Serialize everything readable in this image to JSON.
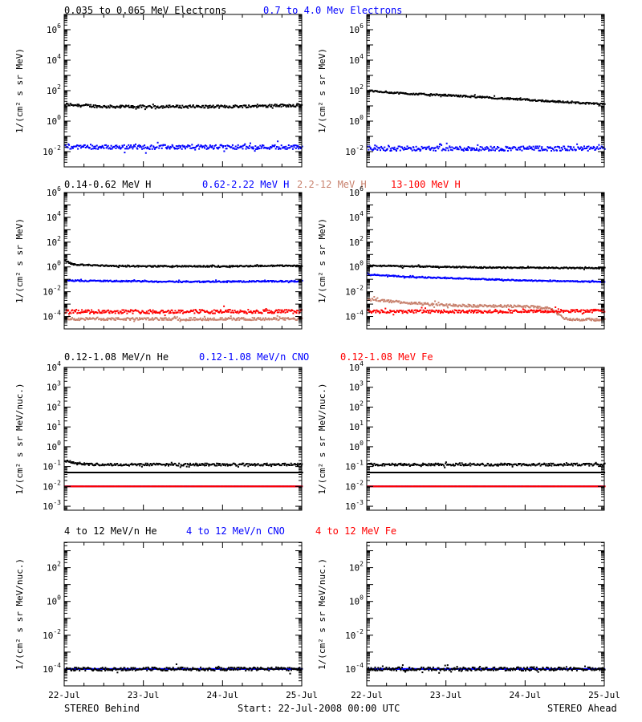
{
  "colors": {
    "black": "#000000",
    "blue": "#0000ff",
    "tan": "#c8826e",
    "red": "#ff0000"
  },
  "rows": [
    {
      "titles": [
        {
          "text": "0.035 to 0.065 MeV Electrons",
          "color": "black"
        },
        {
          "text": "0.7 to 4.0 Mev Electrons",
          "color": "blue"
        }
      ],
      "ylabel": "1/(cm² s sr MeV)"
    },
    {
      "titles": [
        {
          "text": "0.14-0.62 MeV H",
          "color": "black"
        },
        {
          "text": "0.62-2.22 MeV H",
          "color": "blue"
        },
        {
          "text": "2.2-12 MeV H",
          "color": "tan"
        },
        {
          "text": "13-100 MeV H",
          "color": "red"
        }
      ],
      "ylabel": "1/(cm² s sr MeV)"
    },
    {
      "titles": [
        {
          "text": "0.12-1.08 MeV/n He",
          "color": "black"
        },
        {
          "text": "0.12-1.08 MeV/n CNO",
          "color": "blue"
        },
        {
          "text": "0.12-1.08 MeV Fe",
          "color": "red"
        }
      ],
      "ylabel": "1/(cm² s sr MeV/nuc.)"
    },
    {
      "titles": [
        {
          "text": "4 to 12 MeV/n He",
          "color": "black"
        },
        {
          "text": "4 to 12 MeV/n CNO",
          "color": "blue"
        },
        {
          "text": "4 to 12 MeV Fe",
          "color": "red"
        }
      ],
      "ylabel": "1/(cm² s sr MeV/nuc.)"
    }
  ],
  "footer": {
    "left": "STEREO Behind",
    "center": "Start: 22-Jul-2008 00:00 UTC",
    "right": "STEREO Ahead"
  },
  "chart_data": [
    {
      "type": "scatter",
      "panel": "behind-electrons",
      "row": 0,
      "col": 0,
      "x_ticks": [
        "22-Jul",
        "23-Jul",
        "24-Jul",
        "25-Jul"
      ],
      "xlim": [
        0,
        3
      ],
      "yscale": "log",
      "ylim_exp": [
        -3,
        7
      ],
      "y_ticks": [
        {
          "base": "10",
          "exp": "-2",
          "e": -2
        },
        {
          "base": "10",
          "exp": "0",
          "e": 0
        },
        {
          "base": "10",
          "exp": "2",
          "e": 2
        },
        {
          "base": "10",
          "exp": "4",
          "e": 4
        },
        {
          "base": "10",
          "exp": "6",
          "e": 6
        }
      ],
      "series": [
        {
          "color": "black",
          "x": [
            0,
            0.5,
            1.0,
            1.5,
            2.0,
            2.5,
            3.0
          ],
          "log10_y": [
            1.1,
            0.95,
            0.95,
            0.95,
            0.95,
            1.0,
            1.05
          ],
          "scatter": 0.09
        },
        {
          "color": "blue",
          "x": [
            0,
            1.5,
            3.0
          ],
          "log10_y": [
            -1.7,
            -1.7,
            -1.7
          ],
          "scatter": 0.14
        }
      ]
    },
    {
      "type": "scatter",
      "panel": "ahead-electrons",
      "row": 0,
      "col": 1,
      "x_ticks": [
        "22-Jul",
        "23-Jul",
        "24-Jul",
        "25-Jul"
      ],
      "xlim": [
        0,
        3
      ],
      "yscale": "log",
      "ylim_exp": [
        -3,
        7
      ],
      "y_ticks": [
        {
          "base": "10",
          "exp": "-2",
          "e": -2
        },
        {
          "base": "10",
          "exp": "0",
          "e": 0
        },
        {
          "base": "10",
          "exp": "2",
          "e": 2
        },
        {
          "base": "10",
          "exp": "4",
          "e": 4
        },
        {
          "base": "10",
          "exp": "6",
          "e": 6
        }
      ],
      "series": [
        {
          "color": "black",
          "x": [
            0,
            0.5,
            1.0,
            1.5,
            2.0,
            2.5,
            3.0
          ],
          "log10_y": [
            2.0,
            1.8,
            1.7,
            1.55,
            1.4,
            1.25,
            1.1
          ],
          "scatter": 0.05
        },
        {
          "color": "blue",
          "x": [
            0,
            1.5,
            3.0
          ],
          "log10_y": [
            -1.8,
            -1.8,
            -1.8
          ],
          "scatter": 0.15
        }
      ]
    },
    {
      "type": "scatter",
      "panel": "behind-protons",
      "row": 1,
      "col": 0,
      "x_ticks": [
        "22-Jul",
        "23-Jul",
        "24-Jul",
        "25-Jul"
      ],
      "xlim": [
        0,
        3
      ],
      "yscale": "log",
      "ylim_exp": [
        -5,
        6
      ],
      "y_ticks": [
        {
          "base": "10",
          "exp": "-4",
          "e": -4
        },
        {
          "base": "10",
          "exp": "-2",
          "e": -2
        },
        {
          "base": "10",
          "exp": "0",
          "e": 0
        },
        {
          "base": "10",
          "exp": "2",
          "e": 2
        },
        {
          "base": "10",
          "exp": "4",
          "e": 4
        },
        {
          "base": "10",
          "exp": "6",
          "e": 6
        }
      ],
      "series": [
        {
          "color": "black",
          "x": [
            0,
            0.1,
            0.5,
            1.0,
            2.0,
            2.8,
            3.0
          ],
          "log10_y": [
            0.5,
            0.2,
            0.1,
            0.05,
            0.05,
            0.1,
            0.1
          ],
          "scatter": 0.05
        },
        {
          "color": "blue",
          "x": [
            0,
            1.5,
            3.0
          ],
          "log10_y": [
            -1.1,
            -1.2,
            -1.15
          ],
          "scatter": 0.05
        },
        {
          "color": "tan",
          "x": [
            0,
            1.5,
            3.0
          ],
          "log10_y": [
            -4.2,
            -4.2,
            -4.2
          ],
          "scatter": 0.1
        },
        {
          "color": "red",
          "x": [
            0,
            1.5,
            3.0
          ],
          "log10_y": [
            -3.6,
            -3.6,
            -3.6
          ],
          "scatter": 0.15
        }
      ]
    },
    {
      "type": "scatter",
      "panel": "ahead-protons",
      "row": 1,
      "col": 1,
      "x_ticks": [
        "22-Jul",
        "23-Jul",
        "24-Jul",
        "25-Jul"
      ],
      "xlim": [
        0,
        3
      ],
      "yscale": "log",
      "ylim_exp": [
        -5,
        6
      ],
      "y_ticks": [
        {
          "base": "10",
          "exp": "-4",
          "e": -4
        },
        {
          "base": "10",
          "exp": "-2",
          "e": -2
        },
        {
          "base": "10",
          "exp": "0",
          "e": 0
        },
        {
          "base": "10",
          "exp": "2",
          "e": 2
        },
        {
          "base": "10",
          "exp": "4",
          "e": 4
        },
        {
          "base": "10",
          "exp": "6",
          "e": 6
        }
      ],
      "series": [
        {
          "color": "black",
          "x": [
            0,
            1.5,
            3.0
          ],
          "log10_y": [
            0.1,
            -0.05,
            -0.1
          ],
          "scatter": 0.05
        },
        {
          "color": "blue",
          "x": [
            0,
            0.5,
            1.0,
            2.0,
            3.0
          ],
          "log10_y": [
            -0.6,
            -0.8,
            -0.9,
            -1.1,
            -1.2
          ],
          "scatter": 0.04
        },
        {
          "color": "tan",
          "x": [
            0,
            0.5,
            1.0,
            1.5,
            2.0,
            2.3,
            2.5,
            3.0
          ],
          "log10_y": [
            -2.6,
            -2.9,
            -3.1,
            -3.15,
            -3.2,
            -3.3,
            -4.2,
            -4.3
          ],
          "scatter": 0.1
        },
        {
          "color": "red",
          "x": [
            0,
            1.5,
            3.0
          ],
          "log10_y": [
            -3.6,
            -3.6,
            -3.55
          ],
          "scatter": 0.12
        }
      ]
    },
    {
      "type": "scatter",
      "panel": "behind-heavy-low",
      "row": 2,
      "col": 0,
      "x_ticks": [
        "22-Jul",
        "23-Jul",
        "24-Jul",
        "25-Jul"
      ],
      "xlim": [
        0,
        3
      ],
      "yscale": "log",
      "ylim_exp": [
        -3.2,
        4
      ],
      "y_ticks": [
        {
          "base": "10",
          "exp": "-3",
          "e": -3
        },
        {
          "base": "10",
          "exp": "-2",
          "e": -2
        },
        {
          "base": "10",
          "exp": "-1",
          "e": -1
        },
        {
          "base": "10",
          "exp": "0",
          "e": 0
        },
        {
          "base": "10",
          "exp": "1",
          "e": 1
        },
        {
          "base": "10",
          "exp": "2",
          "e": 2
        },
        {
          "base": "10",
          "exp": "3",
          "e": 3
        },
        {
          "base": "10",
          "exp": "4",
          "e": 4
        }
      ],
      "series": [
        {
          "color": "black",
          "x": [
            0,
            3.0
          ],
          "log10_y": [
            -1.3,
            -1.3
          ],
          "scatter": 0.0
        },
        {
          "color": "black",
          "x": [
            0,
            0.3,
            3.0
          ],
          "log10_y": [
            -0.7,
            -0.9,
            -0.9
          ],
          "scatter": 0.06
        },
        {
          "color": "blue",
          "x": [
            0,
            3.0
          ],
          "log10_y": [
            -2.0,
            -2.0
          ],
          "scatter": 0.0
        },
        {
          "color": "red",
          "x": [
            0,
            3.0
          ],
          "log10_y": [
            -2.0,
            -2.0
          ],
          "scatter": 0.0
        }
      ]
    },
    {
      "type": "scatter",
      "panel": "ahead-heavy-low",
      "row": 2,
      "col": 1,
      "x_ticks": [
        "22-Jul",
        "23-Jul",
        "24-Jul",
        "25-Jul"
      ],
      "xlim": [
        0,
        3
      ],
      "yscale": "log",
      "ylim_exp": [
        -3.2,
        4
      ],
      "y_ticks": [
        {
          "base": "10",
          "exp": "-3",
          "e": -3
        },
        {
          "base": "10",
          "exp": "-2",
          "e": -2
        },
        {
          "base": "10",
          "exp": "-1",
          "e": -1
        },
        {
          "base": "10",
          "exp": "0",
          "e": 0
        },
        {
          "base": "10",
          "exp": "1",
          "e": 1
        },
        {
          "base": "10",
          "exp": "2",
          "e": 2
        },
        {
          "base": "10",
          "exp": "3",
          "e": 3
        },
        {
          "base": "10",
          "exp": "4",
          "e": 4
        }
      ],
      "series": [
        {
          "color": "black",
          "x": [
            0,
            3.0
          ],
          "log10_y": [
            -1.3,
            -1.3
          ],
          "scatter": 0.0
        },
        {
          "color": "black",
          "x": [
            0,
            3.0
          ],
          "log10_y": [
            -0.9,
            -0.9
          ],
          "scatter": 0.06
        },
        {
          "color": "blue",
          "x": [
            0,
            3.0
          ],
          "log10_y": [
            -2.0,
            -2.0
          ],
          "scatter": 0.0
        },
        {
          "color": "red",
          "x": [
            0,
            3.0
          ],
          "log10_y": [
            -2.0,
            -2.0
          ],
          "scatter": 0.0
        }
      ]
    },
    {
      "type": "scatter",
      "panel": "behind-heavy-high",
      "row": 3,
      "col": 0,
      "x_ticks": [
        "22-Jul",
        "23-Jul",
        "24-Jul",
        "25-Jul"
      ],
      "xlim": [
        0,
        3
      ],
      "yscale": "log",
      "ylim_exp": [
        -5,
        3.5
      ],
      "y_ticks": [
        {
          "base": "10",
          "exp": "-4",
          "e": -4
        },
        {
          "base": "10",
          "exp": "-2",
          "e": -2
        },
        {
          "base": "10",
          "exp": "0",
          "e": 0
        },
        {
          "base": "10",
          "exp": "2",
          "e": 2
        }
      ],
      "series": [
        {
          "color": "blue",
          "x": [
            0,
            3.0
          ],
          "log10_y": [
            -4.0,
            -4.0
          ],
          "scatter": 0.0
        },
        {
          "color": "black",
          "x": [
            0,
            3.0
          ],
          "log10_y": [
            -4.0,
            -4.0
          ],
          "scatter": 0.1
        }
      ]
    },
    {
      "type": "scatter",
      "panel": "ahead-heavy-high",
      "row": 3,
      "col": 1,
      "x_ticks": [
        "22-Jul",
        "23-Jul",
        "24-Jul",
        "25-Jul"
      ],
      "xlim": [
        0,
        3
      ],
      "yscale": "log",
      "ylim_exp": [
        -5,
        3.5
      ],
      "y_ticks": [
        {
          "base": "10",
          "exp": "-4",
          "e": -4
        },
        {
          "base": "10",
          "exp": "-2",
          "e": -2
        },
        {
          "base": "10",
          "exp": "0",
          "e": 0
        },
        {
          "base": "10",
          "exp": "2",
          "e": 2
        }
      ],
      "series": [
        {
          "color": "blue",
          "x": [
            0,
            3.0
          ],
          "log10_y": [
            -4.0,
            -4.0
          ],
          "scatter": 0.0
        },
        {
          "color": "black",
          "x": [
            0,
            3.0
          ],
          "log10_y": [
            -4.0,
            -4.0
          ],
          "scatter": 0.1
        }
      ]
    }
  ]
}
